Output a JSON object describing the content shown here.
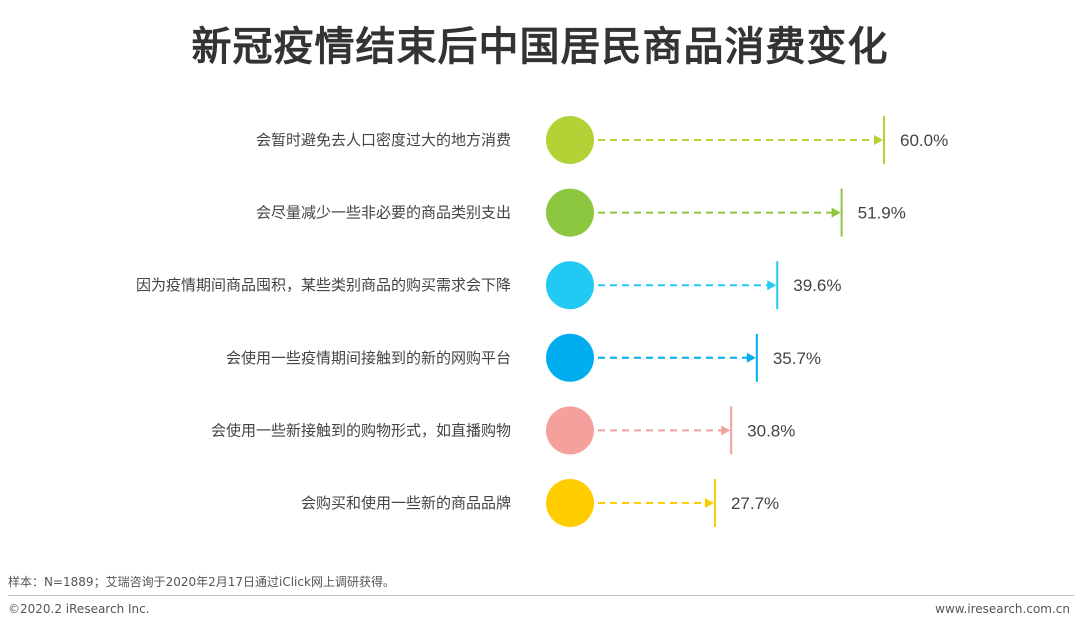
{
  "title": "新冠疫情结束后中国居民商品消费变化",
  "chart_data": {
    "type": "bar",
    "categories": [
      "会暂时避免去人口密度过大的地方消费",
      "会尽量减少一些非必要的商品类别支出",
      "因为疫情期间商品囤积，某些类别商品的购买需求会下降",
      "会使用一些疫情期间接触到的新的网购平台",
      "会使用一些新接触到的购物形式，如直播购物",
      "会购买和使用一些新的商品品牌"
    ],
    "values": [
      60.0,
      51.9,
      39.6,
      35.7,
      30.8,
      27.7
    ],
    "value_labels": [
      "60.0%",
      "51.9%",
      "39.6%",
      "35.7%",
      "30.8%",
      "27.7%"
    ],
    "colors": [
      "#b2d235",
      "#8dc63f",
      "#22c9f2",
      "#00aeef",
      "#f4a09c",
      "#ffcc00"
    ],
    "xlabel": "",
    "ylabel": "",
    "xlim": [
      0,
      60
    ],
    "grid": false
  },
  "note": "样本：N=1889；艾瑞咨询于2020年2月17日通过iClick网上调研获得。",
  "footer": {
    "copyright": "©2020.2 iResearch Inc.",
    "website": "www.iresearch.com.cn"
  }
}
